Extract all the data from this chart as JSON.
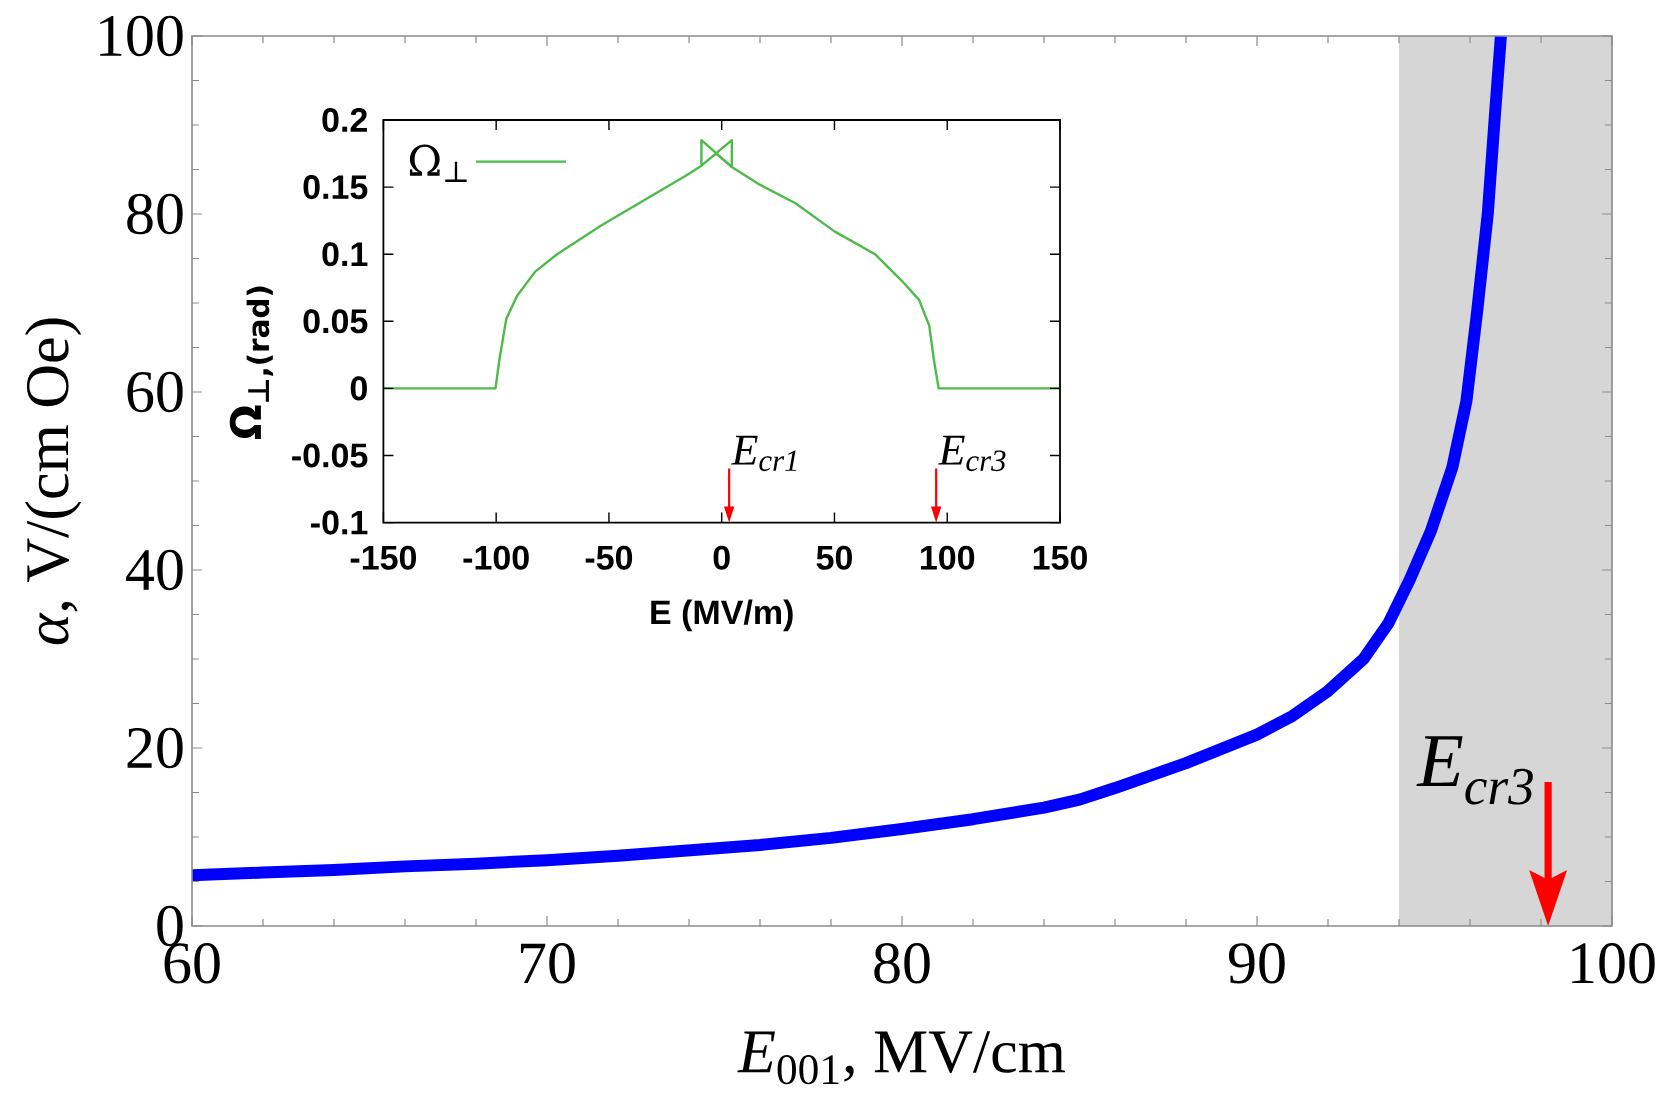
{
  "chart_data": [
    {
      "type": "line",
      "xlabel": "*E*$_{001}$, MV/cm",
      "ylabel": "*α*,  V/(cm Oe)",
      "x": [
        60,
        62,
        64,
        66,
        68,
        70,
        72,
        74,
        76,
        78,
        80,
        82,
        84,
        85,
        86,
        88,
        90,
        91,
        92,
        93,
        93.7,
        94.3,
        94.9,
        95.5,
        95.9,
        96.2,
        96.5,
        96.7,
        96.87
      ],
      "series": [
        {
          "color": "#0000ff",
          "values": [
            5.7,
            6,
            6.3,
            6.7,
            7,
            7.4,
            7.9,
            8.5,
            9.1,
            9.9,
            10.9,
            12,
            13.3,
            14.2,
            15.5,
            18.3,
            21.5,
            23.6,
            26.4,
            30,
            34,
            38.9,
            44.4,
            51.5,
            59,
            69,
            80,
            91,
            100
          ]
        }
      ],
      "xlim": [
        60,
        100
      ],
      "ylim": [
        0,
        100
      ],
      "xticks": [
        60,
        70,
        80,
        90,
        100
      ],
      "yticks": [
        0,
        20,
        40,
        60,
        80,
        100
      ],
      "bands": [
        {
          "axis": "x",
          "from": 94,
          "to": 100,
          "color": "#d6d6d6"
        }
      ],
      "annotations": [
        {
          "text": "E$_{cr3}$",
          "x": 98.2,
          "y": 0
        }
      ]
    },
    {
      "type": "line",
      "xlabel": "E (MV/m)",
      "ylabel": "Ω$_{⊥,(rad)}$",
      "x": [
        -150,
        -100.3,
        -98.7,
        -95.5,
        -90.7,
        -82.7,
        -73,
        -53.8,
        -34.6,
        -15.4,
        -9,
        -9,
        4.5,
        4.5,
        -9,
        -2.5,
        4.5,
        16.7,
        32.7,
        50,
        68,
        80,
        87.5,
        92,
        94.2,
        96.2,
        150
      ],
      "series": [
        {
          "name": "Ω$_{⊥}$",
          "color": "#4dbb4a",
          "values": [
            0,
            0,
            0.02,
            0.052,
            0.069,
            0.087,
            0.1,
            0.121,
            0.14,
            0.159,
            0.166,
            0.185,
            0.165,
            0.185,
            0.166,
            0.175,
            0.165,
            0.152,
            0.138,
            0.117,
            0.1,
            0.08,
            0.066,
            0.047,
            0.02,
            0,
            0
          ]
        }
      ],
      "xlim": [
        -150,
        150
      ],
      "ylim": [
        -0.1,
        0.2
      ],
      "xticks": [
        -150,
        -100,
        -50,
        0,
        50,
        100,
        150
      ],
      "yticks": [
        -0.1,
        -0.05,
        0,
        0.05,
        0.1,
        0.15,
        0.2
      ],
      "legend": "top left",
      "annotations": [
        "E$_{cr1}$",
        "E$_{cr3}$"
      ]
    }
  ]
}
